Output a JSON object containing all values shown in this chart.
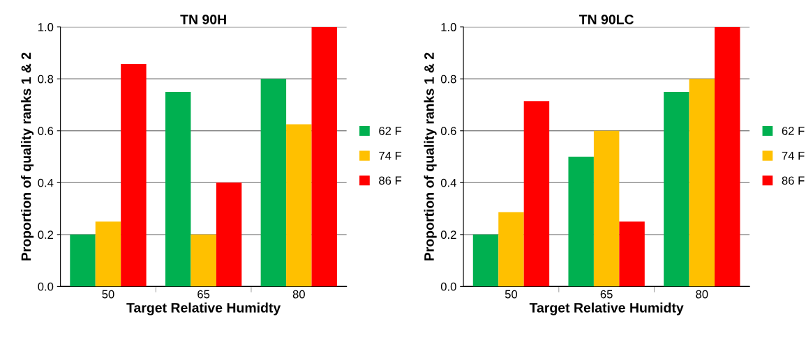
{
  "chart_data": [
    {
      "type": "bar",
      "title": "TN 90H",
      "xlabel": "Target Relative Humidty",
      "ylabel": "Proportion of quality ranks 1 & 2",
      "categories": [
        "50",
        "65",
        "80"
      ],
      "series": [
        {
          "name": "62 F",
          "color": "#00b050",
          "values": [
            0.2,
            0.75,
            0.8
          ]
        },
        {
          "name": "74 F",
          "color": "#ffc000",
          "values": [
            0.25,
            0.2,
            0.625
          ]
        },
        {
          "name": "86 F",
          "color": "#ff0000",
          "values": [
            0.857,
            0.4,
            1.0
          ]
        }
      ],
      "ylim": [
        0,
        1
      ],
      "yticks": [
        {
          "value": 0,
          "label": "0.0"
        },
        {
          "value": 0.2,
          "label": "0.2"
        },
        {
          "value": 0.4,
          "label": "0.4"
        },
        {
          "value": 0.6,
          "label": "0.6"
        },
        {
          "value": 0.8,
          "label": "0.8"
        },
        {
          "value": 1,
          "label": "1.0"
        }
      ],
      "grid": "y",
      "legend": "right"
    },
    {
      "type": "bar",
      "title": "TN 90LC",
      "xlabel": "Target Relative Humidty",
      "ylabel": "Proportion of quality ranks 1 & 2",
      "categories": [
        "50",
        "65",
        "80"
      ],
      "series": [
        {
          "name": "62 F",
          "color": "#00b050",
          "values": [
            0.2,
            0.5,
            0.75
          ]
        },
        {
          "name": "74 F",
          "color": "#ffc000",
          "values": [
            0.286,
            0.6,
            0.8
          ]
        },
        {
          "name": "86 F",
          "color": "#ff0000",
          "values": [
            0.714,
            0.25,
            1.0
          ]
        }
      ],
      "ylim": [
        0,
        1
      ],
      "yticks": [
        {
          "value": 0,
          "label": "0.0"
        },
        {
          "value": 0.2,
          "label": "0.2"
        },
        {
          "value": 0.4,
          "label": "0.4"
        },
        {
          "value": 0.6,
          "label": "0.6"
        },
        {
          "value": 0.8,
          "label": "0.8"
        },
        {
          "value": 1,
          "label": "1.0"
        }
      ],
      "grid": "y",
      "legend": "right"
    }
  ]
}
